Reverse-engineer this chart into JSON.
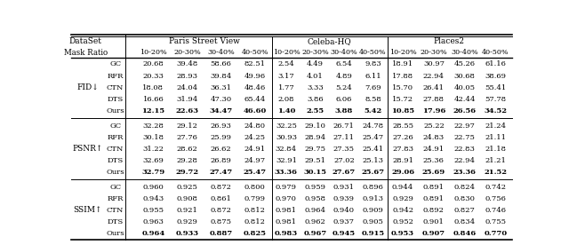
{
  "methods": [
    "GC",
    "RFR",
    "CTN",
    "DTS",
    "Ours"
  ],
  "groups": [
    "Paris Street View",
    "Celeba-HQ",
    "Places2"
  ],
  "col_labels": [
    "10-20%",
    "20-30%",
    "30-40%",
    "40-50%"
  ],
  "FID": {
    "Paris Street View": {
      "GC": [
        "20.68",
        "39.48",
        "58.66",
        "82.51"
      ],
      "RFR": [
        "20.33",
        "28.93",
        "39.84",
        "49.96"
      ],
      "CTN": [
        "18.08",
        "24.04",
        "36.31",
        "48.46"
      ],
      "DTS": [
        "16.66",
        "31.94",
        "47.30",
        "65.44"
      ],
      "Ours": [
        "12.15",
        "22.63",
        "34.47",
        "46.60"
      ]
    },
    "Celeba-HQ": {
      "GC": [
        "2.54",
        "4.49",
        "6.54",
        "9.83"
      ],
      "RFR": [
        "3.17",
        "4.01",
        "4.89",
        "6.11"
      ],
      "CTN": [
        "1.77",
        "3.33",
        "5.24",
        "7.69"
      ],
      "DTS": [
        "2.08",
        "3.86",
        "6.06",
        "8.58"
      ],
      "Ours": [
        "1.40",
        "2.55",
        "3.88",
        "5.42"
      ]
    },
    "Places2": {
      "GC": [
        "18.91",
        "30.97",
        "45.26",
        "61.16"
      ],
      "RFR": [
        "17.88",
        "22.94",
        "30.68",
        "38.69"
      ],
      "CTN": [
        "15.70",
        "26.41",
        "40.05",
        "55.41"
      ],
      "DTS": [
        "15.72",
        "27.88",
        "42.44",
        "57.78"
      ],
      "Ours": [
        "10.85",
        "17.96",
        "26.56",
        "34.52"
      ]
    }
  },
  "PSNR": {
    "Paris Street View": {
      "GC": [
        "32.28",
        "29.12",
        "26.93",
        "24.80"
      ],
      "RFR": [
        "30.18",
        "27.76",
        "25.99",
        "24.25"
      ],
      "CTN": [
        "31.22",
        "28.62",
        "26.62",
        "24.91"
      ],
      "DTS": [
        "32.69",
        "29.28",
        "26.89",
        "24.97"
      ],
      "Ours": [
        "32.79",
        "29.72",
        "27.47",
        "25.47"
      ]
    },
    "Celeba-HQ": {
      "GC": [
        "32.25",
        "29.10",
        "26.71",
        "24.78"
      ],
      "RFR": [
        "30.93",
        "28.94",
        "27.11",
        "25.47"
      ],
      "CTN": [
        "32.84",
        "29.75",
        "27.35",
        "25.41"
      ],
      "DTS": [
        "32.91",
        "29.51",
        "27.02",
        "25.13"
      ],
      "Ours": [
        "33.36",
        "30.15",
        "27.67",
        "25.67"
      ]
    },
    "Places2": {
      "GC": [
        "28.55",
        "25.22",
        "22.97",
        "21.24"
      ],
      "RFR": [
        "27.26",
        "24.83",
        "22.75",
        "21.11"
      ],
      "CTN": [
        "27.83",
        "24.91",
        "22.83",
        "21.18"
      ],
      "DTS": [
        "28.91",
        "25.36",
        "22.94",
        "21.21"
      ],
      "Ours": [
        "29.06",
        "25.69",
        "23.36",
        "21.52"
      ]
    }
  },
  "SSIM": {
    "Paris Street View": {
      "GC": [
        "0.960",
        "0.925",
        "0.872",
        "0.800"
      ],
      "RFR": [
        "0.943",
        "0.908",
        "0.861",
        "0.799"
      ],
      "CTN": [
        "0.955",
        "0.921",
        "0.872",
        "0.812"
      ],
      "DTS": [
        "0.963",
        "0.929",
        "0.875",
        "0.812"
      ],
      "Ours": [
        "0.964",
        "0.933",
        "0.887",
        "0.825"
      ]
    },
    "Celeba-HQ": {
      "GC": [
        "0.979",
        "0.959",
        "0.931",
        "0.896"
      ],
      "RFR": [
        "0.970",
        "0.958",
        "0.939",
        "0.913"
      ],
      "CTN": [
        "0.981",
        "0.964",
        "0.940",
        "0.909"
      ],
      "DTS": [
        "0.981",
        "0.962",
        "0.937",
        "0.905"
      ],
      "Ours": [
        "0.983",
        "0.967",
        "0.945",
        "0.915"
      ]
    },
    "Places2": {
      "GC": [
        "0.944",
        "0.891",
        "0.824",
        "0.742"
      ],
      "RFR": [
        "0.929",
        "0.891",
        "0.830",
        "0.756"
      ],
      "CTN": [
        "0.942",
        "0.892",
        "0.827",
        "0.746"
      ],
      "DTS": [
        "0.952",
        "0.901",
        "0.834",
        "0.755"
      ],
      "Ours": [
        "0.953",
        "0.907",
        "0.846",
        "0.770"
      ]
    }
  }
}
